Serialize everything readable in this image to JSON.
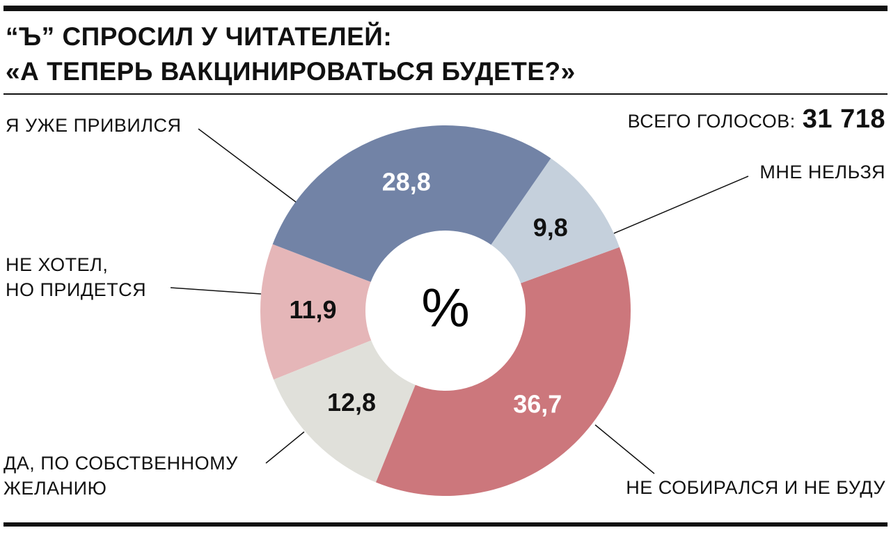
{
  "chart_data": {
    "type": "donut",
    "title": "“Ъ” СПРОСИЛ У ЧИТАТЕЛЕЙ:\n«А ТЕПЕРЬ ВАКЦИНИРОВАТЬСЯ БУДЕТЕ?»",
    "total_label": "ВСЕГО ГОЛОСОВ:",
    "total": "31 718",
    "center_label": "%",
    "categories": [
      "Я УЖЕ ПРИВИЛСЯ",
      "МНЕ НЕЛЬЗЯ",
      "НЕ СОБИРАЛСЯ И НЕ БУДУ",
      "ДА, ПО СОБСТВЕННОМУ\nЖЕЛАНИЮ",
      "НЕ ХОТЕЛ,\nНО ПРИДЕТСЯ"
    ],
    "values": [
      28.8,
      9.8,
      36.7,
      12.8,
      11.9
    ],
    "value_labels": [
      "28,8",
      "9,8",
      "36,7",
      "12,8",
      "11,9"
    ],
    "colors": [
      "#7283a6",
      "#c5d0dc",
      "#cc777c",
      "#e0e0da",
      "#e5b6b8"
    ],
    "value_label_colors": [
      "#ffffff",
      "#111111",
      "#ffffff",
      "#111111",
      "#111111"
    ]
  }
}
